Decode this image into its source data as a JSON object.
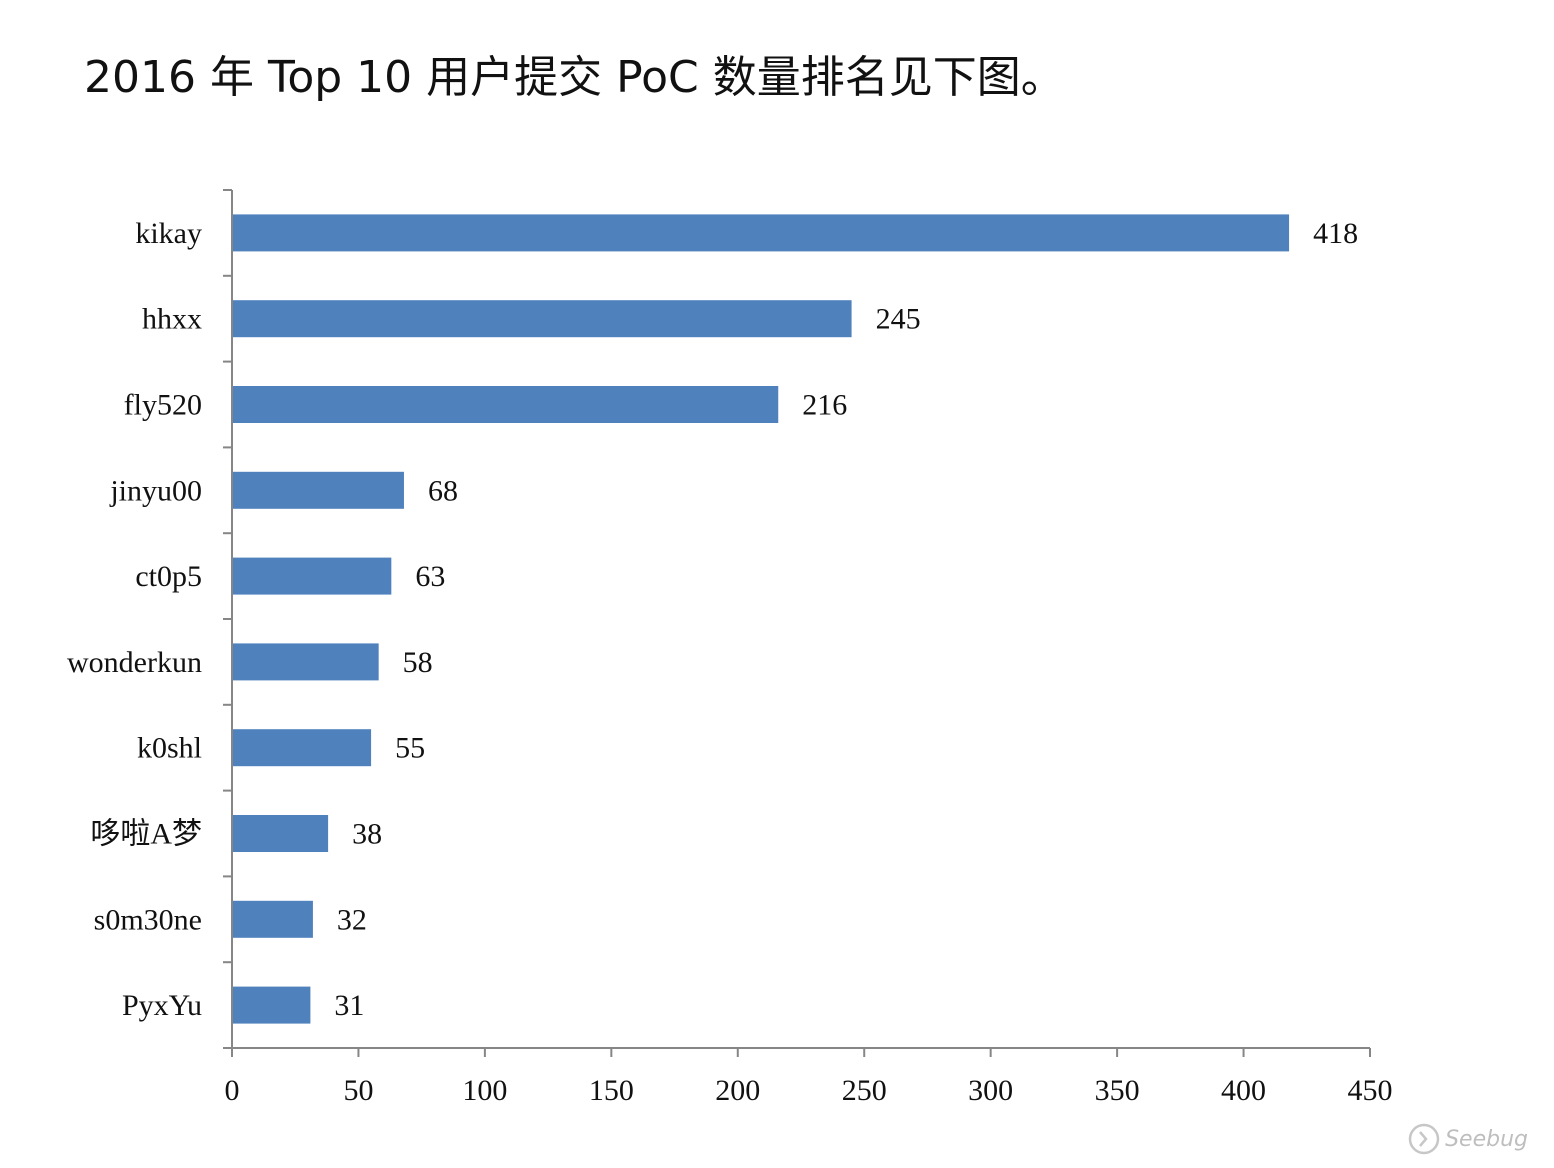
{
  "page": {
    "title": "2016 年 Top 10 用户提交 PoC 数量排名见下图。",
    "watermark": "Seebug"
  },
  "chart_data": {
    "type": "bar",
    "orientation": "horizontal",
    "title": "",
    "xlabel": "",
    "ylabel": "",
    "categories": [
      "kikay",
      "hhxx",
      "fly520",
      "jinyu00",
      "ct0p5",
      "wonderkun",
      "k0shl",
      "哆啦A梦",
      "s0m30ne",
      "PyxYu"
    ],
    "values": [
      418,
      245,
      216,
      68,
      63,
      58,
      55,
      38,
      32,
      31
    ],
    "xlim": [
      0,
      450
    ],
    "xticks": [
      0,
      50,
      100,
      150,
      200,
      250,
      300,
      350,
      400,
      450
    ],
    "bar_color": "#4F81BD",
    "axis_color": "#868686",
    "grid": false,
    "legend": "none",
    "data_labels": true
  }
}
